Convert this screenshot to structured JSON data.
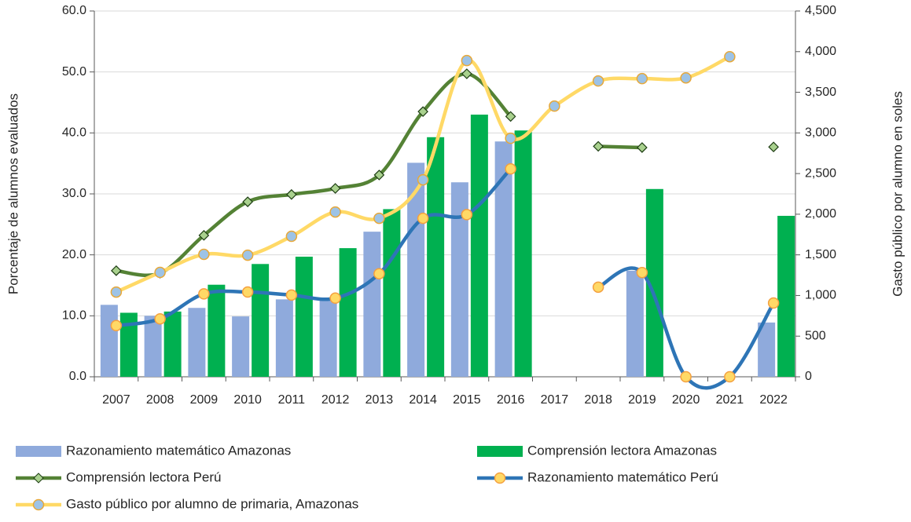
{
  "chart_data": {
    "type": "combo",
    "categories": [
      "2007",
      "2008",
      "2009",
      "2010",
      "2011",
      "2012",
      "2013",
      "2014",
      "2015",
      "2016",
      "2017",
      "2018",
      "2019",
      "2020",
      "2021",
      "2022"
    ],
    "ylabel": "Porcentaje de alumnos evaluados",
    "y2label": "Gasto público por alumno en soles",
    "ylim": [
      0,
      60
    ],
    "yticks": [
      {
        "value": 0,
        "label": "0.0"
      },
      {
        "value": 10,
        "label": "10.0"
      },
      {
        "value": 20,
        "label": "20.0"
      },
      {
        "value": 30,
        "label": "30.0"
      },
      {
        "value": 40,
        "label": "40.0"
      },
      {
        "value": 50,
        "label": "50.0"
      },
      {
        "value": 60,
        "label": "60.0"
      }
    ],
    "y2lim": [
      0,
      4500
    ],
    "y2ticks": [
      0,
      500,
      {
        "value": 1000,
        "label": "1,000"
      },
      {
        "value": 1500,
        "label": "1,500"
      },
      {
        "value": 2000,
        "label": "2,000"
      },
      {
        "value": 2500,
        "label": "2,500"
      },
      {
        "value": 3000,
        "label": "3,000"
      },
      {
        "value": 3500,
        "label": "3,500"
      },
      {
        "value": 4000,
        "label": "4,000"
      },
      {
        "value": 4500,
        "label": "4,500"
      }
    ],
    "grid": true,
    "legend": "bottom",
    "series": [
      {
        "name": "Razonamiento matemático Amazonas",
        "kind": "bar",
        "color": "#8faadc",
        "values": [
          11.8,
          10.0,
          11.3,
          9.9,
          12.7,
          12.5,
          23.8,
          35.1,
          31.9,
          38.6,
          null,
          null,
          17.4,
          null,
          null,
          8.9
        ]
      },
      {
        "name": "Comprensión lectora Amazonas",
        "kind": "bar",
        "color": "#00b050",
        "values": [
          10.5,
          10.7,
          15.1,
          18.5,
          19.7,
          21.1,
          27.5,
          39.3,
          43.0,
          40.4,
          null,
          null,
          30.8,
          null,
          null,
          26.4
        ]
      },
      {
        "name": "Comprensión lectora Perú",
        "kind": "line",
        "color": "#548235",
        "marker": "diamond",
        "marker_color": "#a9d18e",
        "marker_edge": "#1e3d14",
        "values": [
          17.4,
          17.0,
          23.2,
          28.7,
          29.9,
          30.9,
          33.1,
          43.5,
          49.7,
          42.7,
          null,
          37.8,
          37.6,
          null,
          null,
          37.7
        ]
      },
      {
        "name": "Razonamiento matemático Perú",
        "kind": "line",
        "color": "#2e75b6",
        "marker": "circle",
        "marker_color": "#ffd966",
        "marker_edge": "#f4a040",
        "values": [
          8.4,
          9.5,
          13.6,
          13.9,
          13.4,
          12.9,
          16.9,
          26.0,
          26.6,
          34.1,
          null,
          14.7,
          17.1,
          0,
          0,
          12.1
        ]
      },
      {
        "name": "Gasto público por alumno de primaria, Amazonas",
        "kind": "line",
        "axis": "y2",
        "color": "#ffd966",
        "marker": "circle",
        "marker_color": "#9dc3e6",
        "marker_edge": "#e8a838",
        "values": [
          1042,
          1284,
          1506,
          1496,
          1728,
          2027,
          1950,
          2423,
          3890,
          2934,
          3330,
          3639,
          3668,
          3677,
          3938,
          null
        ]
      }
    ]
  }
}
